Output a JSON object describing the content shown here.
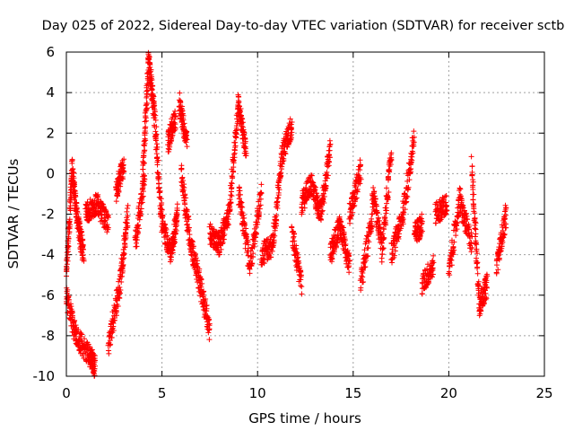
{
  "chart_data": {
    "type": "scatter",
    "title": "Day 025 of 2022, Sidereal Day-to-day VTEC variation (SDTVAR) for receiver sctb",
    "xlabel": "GPS time / hours",
    "ylabel": "SDTVAR / TECUs",
    "xlim": [
      0,
      25
    ],
    "ylim": [
      -10,
      6
    ],
    "xticks": [
      "0",
      "5",
      "10",
      "15",
      "20",
      "25"
    ],
    "yticks": [
      "-10",
      "-8",
      "-6",
      "-4",
      "-2",
      "0",
      "2",
      "4",
      "6"
    ],
    "grid": true,
    "marker": "plus",
    "colors": {
      "series": "#ff0000",
      "grid": "#a0a0a0",
      "axis": "#000000"
    },
    "series_segments": [
      {
        "x": [
          0.0,
          0.3
        ],
        "y": [
          -5.0,
          0.2
        ]
      },
      {
        "x": [
          0.3,
          0.6
        ],
        "y": [
          0.2,
          -2.5
        ]
      },
      {
        "x": [
          0.6,
          0.9
        ],
        "y": [
          -2.5,
          -4.0
        ]
      },
      {
        "x": [
          0.0,
          0.5
        ],
        "y": [
          -6.0,
          -8.0
        ]
      },
      {
        "x": [
          0.5,
          1.2
        ],
        "y": [
          -8.0,
          -9.0
        ]
      },
      {
        "x": [
          1.2,
          1.5
        ],
        "y": [
          -9.0,
          -9.5
        ]
      },
      {
        "x": [
          1.0,
          1.6
        ],
        "y": [
          -2.0,
          -1.5
        ]
      },
      {
        "x": [
          1.6,
          2.2
        ],
        "y": [
          -1.5,
          -2.5
        ]
      },
      {
        "x": [
          2.2,
          2.8
        ],
        "y": [
          -8.5,
          -5.5
        ]
      },
      {
        "x": [
          2.8,
          3.2
        ],
        "y": [
          -5.5,
          -2.0
        ]
      },
      {
        "x": [
          2.6,
          3.0
        ],
        "y": [
          -1.0,
          0.5
        ]
      },
      {
        "x": [
          3.6,
          4.1
        ],
        "y": [
          -3.5,
          0.0
        ]
      },
      {
        "x": [
          4.0,
          4.3
        ],
        "y": [
          0.0,
          5.6
        ]
      },
      {
        "x": [
          4.3,
          4.6
        ],
        "y": [
          5.6,
          3.0
        ]
      },
      {
        "x": [
          4.6,
          5.0
        ],
        "y": [
          3.0,
          -2.5
        ]
      },
      {
        "x": [
          5.0,
          5.5
        ],
        "y": [
          -2.5,
          -4.0
        ]
      },
      {
        "x": [
          5.5,
          5.8
        ],
        "y": [
          -4.0,
          -2.0
        ]
      },
      {
        "x": [
          5.3,
          5.7
        ],
        "y": [
          1.5,
          2.8
        ]
      },
      {
        "x": [
          5.9,
          6.3
        ],
        "y": [
          3.5,
          1.5
        ]
      },
      {
        "x": [
          6.0,
          6.5
        ],
        "y": [
          0.0,
          -3.5
        ]
      },
      {
        "x": [
          6.5,
          7.0
        ],
        "y": [
          -3.5,
          -5.5
        ]
      },
      {
        "x": [
          7.0,
          7.5
        ],
        "y": [
          -5.5,
          -7.8
        ]
      },
      {
        "x": [
          7.5,
          8.0
        ],
        "y": [
          -3.0,
          -3.5
        ]
      },
      {
        "x": [
          8.0,
          8.5
        ],
        "y": [
          -3.5,
          -2.0
        ]
      },
      {
        "x": [
          8.5,
          9.0
        ],
        "y": [
          -2.0,
          3.4
        ]
      },
      {
        "x": [
          9.0,
          9.4
        ],
        "y": [
          3.4,
          1.0
        ]
      },
      {
        "x": [
          9.0,
          9.6
        ],
        "y": [
          -1.0,
          -4.5
        ]
      },
      {
        "x": [
          9.6,
          10.2
        ],
        "y": [
          -4.5,
          -1.0
        ]
      },
      {
        "x": [
          10.2,
          10.8
        ],
        "y": [
          -4.0,
          -3.5
        ]
      },
      {
        "x": [
          10.8,
          11.3
        ],
        "y": [
          -3.5,
          1.0
        ]
      },
      {
        "x": [
          11.3,
          11.8
        ],
        "y": [
          1.0,
          2.4
        ]
      },
      {
        "x": [
          11.8,
          12.3
        ],
        "y": [
          -3.0,
          -5.5
        ]
      },
      {
        "x": [
          12.3,
          12.8
        ],
        "y": [
          -1.5,
          -0.5
        ]
      },
      {
        "x": [
          12.8,
          13.3
        ],
        "y": [
          -0.5,
          -2.0
        ]
      },
      {
        "x": [
          13.3,
          13.8
        ],
        "y": [
          -2.0,
          1.3
        ]
      },
      {
        "x": [
          13.8,
          14.3
        ],
        "y": [
          -4.0,
          -2.5
        ]
      },
      {
        "x": [
          14.3,
          14.8
        ],
        "y": [
          -2.5,
          -4.5
        ]
      },
      {
        "x": [
          14.8,
          15.4
        ],
        "y": [
          -2.0,
          0.2
        ]
      },
      {
        "x": [
          15.4,
          16.0
        ],
        "y": [
          -5.5,
          -2.0
        ]
      },
      {
        "x": [
          16.0,
          16.5
        ],
        "y": [
          -1.0,
          -3.5
        ]
      },
      {
        "x": [
          16.5,
          17.0
        ],
        "y": [
          -4.0,
          1.2
        ]
      },
      {
        "x": [
          17.0,
          17.6
        ],
        "y": [
          -4.0,
          -2.0
        ]
      },
      {
        "x": [
          17.6,
          18.2
        ],
        "y": [
          -2.0,
          1.8
        ]
      },
      {
        "x": [
          18.2,
          18.6
        ],
        "y": [
          -3.0,
          -2.5
        ]
      },
      {
        "x": [
          18.6,
          19.2
        ],
        "y": [
          -5.5,
          -4.5
        ]
      },
      {
        "x": [
          19.3,
          19.9
        ],
        "y": [
          -2.0,
          -1.5
        ]
      },
      {
        "x": [
          20.0,
          20.6
        ],
        "y": [
          -5.0,
          -1.0
        ]
      },
      {
        "x": [
          20.6,
          21.2
        ],
        "y": [
          -1.5,
          -3.5
        ]
      },
      {
        "x": [
          21.2,
          21.6
        ],
        "y": [
          0.4,
          -6.5
        ]
      },
      {
        "x": [
          21.6,
          22.0
        ],
        "y": [
          -6.5,
          -5.5
        ]
      },
      {
        "x": [
          22.5,
          23.0
        ],
        "y": [
          -4.5,
          -2.0
        ]
      }
    ]
  }
}
